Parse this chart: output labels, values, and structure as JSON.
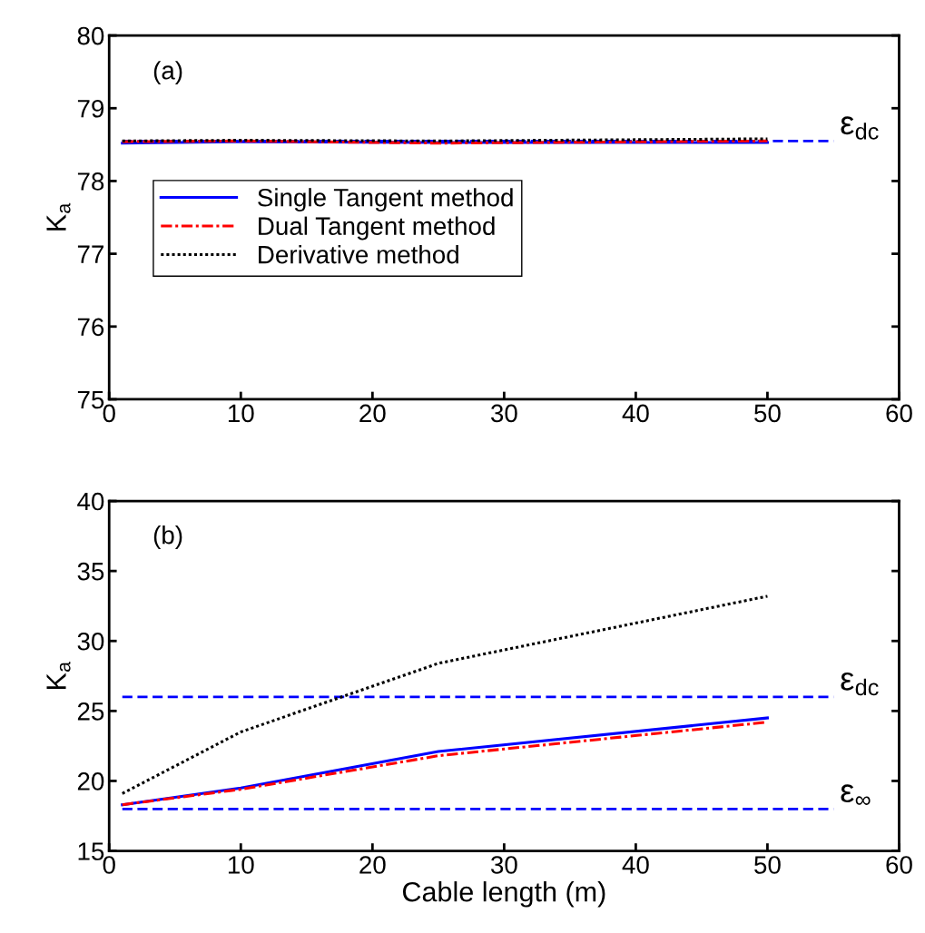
{
  "chart_data": [
    {
      "type": "line",
      "ylabel": "K$_{a}$",
      "annotations": [
        "(a)"
      ],
      "x": [
        1,
        10,
        25,
        50
      ],
      "xlim": [
        0,
        60
      ],
      "xticks": [
        0,
        10,
        20,
        30,
        40,
        50,
        60
      ],
      "ylim": [
        75,
        80
      ],
      "yticks": [
        75,
        76,
        77,
        78,
        79,
        80
      ],
      "series": [
        {
          "name": "Single Tangent method",
          "color": "#0000ff",
          "line_style": "solid",
          "values": [
            78.52,
            78.54,
            78.53,
            78.53
          ]
        },
        {
          "name": "Dual Tangent method",
          "color": "#ff0000",
          "line_style": "dashdot",
          "values": [
            78.54,
            78.55,
            78.52,
            78.55
          ]
        },
        {
          "name": "Derivative method",
          "color": "#000000",
          "line_style": "dotted",
          "values": [
            78.55,
            78.56,
            78.55,
            78.58
          ]
        }
      ],
      "ref_lines": [
        {
          "axis": "y",
          "value": 78.55,
          "label": "ε$_{dc}$",
          "color": "#0000ff",
          "line_style": "dashed"
        }
      ],
      "legend": "center left",
      "grid": false
    },
    {
      "type": "line",
      "ylabel": "K$_{a}$",
      "xlabel": "Cable length (m)",
      "annotations": [
        "(b)"
      ],
      "x": [
        1,
        10,
        25,
        50
      ],
      "xlim": [
        0,
        60
      ],
      "xticks": [
        0,
        10,
        20,
        30,
        40,
        50,
        60
      ],
      "ylim": [
        15,
        40
      ],
      "yticks": [
        15,
        20,
        25,
        30,
        35,
        40
      ],
      "series": [
        {
          "color": "#0000ff",
          "line_style": "solid",
          "values": [
            18.3,
            19.5,
            22.1,
            24.5
          ]
        },
        {
          "color": "#ff0000",
          "line_style": "dashdot",
          "values": [
            18.3,
            19.4,
            21.8,
            24.2
          ]
        },
        {
          "color": "#000000",
          "line_style": "dotted",
          "values": [
            19.1,
            23.5,
            28.4,
            33.2
          ]
        }
      ],
      "ref_lines": [
        {
          "axis": "y",
          "value": 26,
          "label": "ε$_{dc}$",
          "color": "#0000ff",
          "line_style": "dashed"
        },
        {
          "axis": "y",
          "value": 18,
          "label": "ε$_{∞}$",
          "color": "#0000ff",
          "line_style": "dashed"
        }
      ],
      "grid": false
    }
  ]
}
